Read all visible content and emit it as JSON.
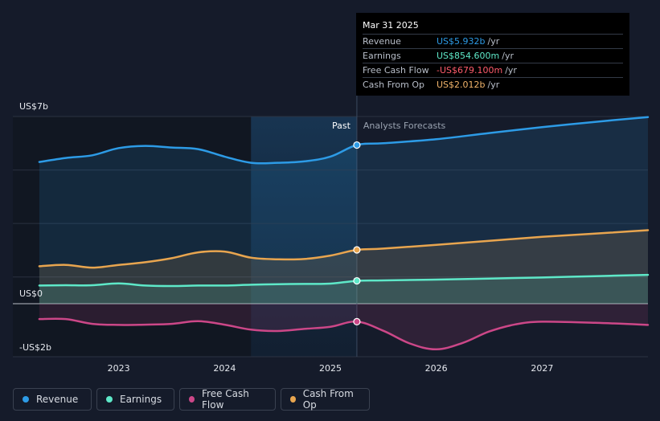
{
  "tooltip": {
    "date": "Mar 31 2025",
    "rows": [
      {
        "label": "Revenue",
        "value": "US$5.932b",
        "unit": "/yr",
        "color": "#2d9be6"
      },
      {
        "label": "Earnings",
        "value": "US$854.600m",
        "unit": "/yr",
        "color": "#5ee8c8"
      },
      {
        "label": "Free Cash Flow",
        "value": "-US$679.100m",
        "unit": "/yr",
        "color": "#ff5c6c"
      },
      {
        "label": "Cash From Op",
        "value": "US$2.012b",
        "unit": "/yr",
        "color": "#f1b46a"
      }
    ]
  },
  "legend": [
    {
      "label": "Revenue",
      "color": "#2d9be6"
    },
    {
      "label": "Earnings",
      "color": "#5ee8c8"
    },
    {
      "label": "Free Cash Flow",
      "color": "#cc4788"
    },
    {
      "label": "Cash From Op",
      "color": "#e8a54f"
    }
  ],
  "chart_data": {
    "type": "line",
    "title": "",
    "y_top_label": "US$7b",
    "y_zero_label": "US$0",
    "y_bottom_label": "-US$2b",
    "ylim": [
      -2.0,
      7.0
    ],
    "xlim": [
      2022.0,
      2028.0
    ],
    "x_ticks": [
      {
        "value": 2023.0,
        "label": "2023"
      },
      {
        "value": 2024.0,
        "label": "2024"
      },
      {
        "value": 2025.0,
        "label": "2025"
      },
      {
        "value": 2026.0,
        "label": "2026"
      },
      {
        "value": 2027.0,
        "label": "2027"
      }
    ],
    "gridlines_y": [
      5.0,
      3.0,
      1.0
    ],
    "past_label": "Past",
    "forecast_label": "Analysts Forecasts",
    "past_shade_start": 2024.25,
    "divider_x": 2025.25,
    "series": [
      {
        "name": "Revenue",
        "color": "#2d9be6",
        "fill": true,
        "points": [
          [
            2022.25,
            5.3
          ],
          [
            2022.5,
            5.45
          ],
          [
            2022.75,
            5.55
          ],
          [
            2023.0,
            5.82
          ],
          [
            2023.25,
            5.9
          ],
          [
            2023.5,
            5.84
          ],
          [
            2023.75,
            5.78
          ],
          [
            2024.0,
            5.5
          ],
          [
            2024.25,
            5.27
          ],
          [
            2024.5,
            5.27
          ],
          [
            2024.75,
            5.32
          ],
          [
            2025.0,
            5.5
          ],
          [
            2025.25,
            5.932
          ],
          [
            2025.5,
            6.0
          ],
          [
            2026.0,
            6.15
          ],
          [
            2026.5,
            6.38
          ],
          [
            2027.0,
            6.6
          ],
          [
            2027.5,
            6.8
          ],
          [
            2028.0,
            6.98
          ]
        ]
      },
      {
        "name": "Cash From Op",
        "color": "#e8a54f",
        "fill": true,
        "points": [
          [
            2022.25,
            1.4
          ],
          [
            2022.5,
            1.45
          ],
          [
            2022.75,
            1.35
          ],
          [
            2023.0,
            1.45
          ],
          [
            2023.25,
            1.55
          ],
          [
            2023.5,
            1.7
          ],
          [
            2023.75,
            1.92
          ],
          [
            2024.0,
            1.95
          ],
          [
            2024.25,
            1.72
          ],
          [
            2024.5,
            1.66
          ],
          [
            2024.75,
            1.67
          ],
          [
            2025.0,
            1.8
          ],
          [
            2025.25,
            2.012
          ],
          [
            2025.5,
            2.06
          ],
          [
            2026.0,
            2.2
          ],
          [
            2026.5,
            2.35
          ],
          [
            2027.0,
            2.5
          ],
          [
            2027.5,
            2.62
          ],
          [
            2028.0,
            2.75
          ]
        ]
      },
      {
        "name": "Earnings",
        "color": "#5ee8c8",
        "fill": true,
        "points": [
          [
            2022.25,
            0.68
          ],
          [
            2022.5,
            0.69
          ],
          [
            2022.75,
            0.69
          ],
          [
            2023.0,
            0.76
          ],
          [
            2023.25,
            0.68
          ],
          [
            2023.5,
            0.66
          ],
          [
            2023.75,
            0.68
          ],
          [
            2024.0,
            0.68
          ],
          [
            2024.25,
            0.71
          ],
          [
            2024.5,
            0.73
          ],
          [
            2024.75,
            0.74
          ],
          [
            2025.0,
            0.75
          ],
          [
            2025.25,
            0.8546
          ],
          [
            2025.5,
            0.87
          ],
          [
            2026.0,
            0.9
          ],
          [
            2026.5,
            0.94
          ],
          [
            2027.0,
            0.98
          ],
          [
            2027.5,
            1.03
          ],
          [
            2028.0,
            1.08
          ]
        ]
      },
      {
        "name": "Free Cash Flow",
        "color": "#cc4788",
        "fill": true,
        "points": [
          [
            2022.25,
            -0.58
          ],
          [
            2022.5,
            -0.58
          ],
          [
            2022.75,
            -0.76
          ],
          [
            2023.0,
            -0.8
          ],
          [
            2023.25,
            -0.79
          ],
          [
            2023.5,
            -0.76
          ],
          [
            2023.75,
            -0.66
          ],
          [
            2024.0,
            -0.79
          ],
          [
            2024.25,
            -0.98
          ],
          [
            2024.5,
            -1.03
          ],
          [
            2024.75,
            -0.95
          ],
          [
            2025.0,
            -0.87
          ],
          [
            2025.25,
            -0.6791
          ],
          [
            2025.5,
            -1.02
          ],
          [
            2025.75,
            -1.5
          ],
          [
            2026.0,
            -1.72
          ],
          [
            2026.25,
            -1.48
          ],
          [
            2026.5,
            -1.05
          ],
          [
            2026.75,
            -0.78
          ],
          [
            2027.0,
            -0.68
          ],
          [
            2027.5,
            -0.72
          ],
          [
            2028.0,
            -0.8
          ]
        ]
      }
    ],
    "highlight_x": 2025.25
  }
}
